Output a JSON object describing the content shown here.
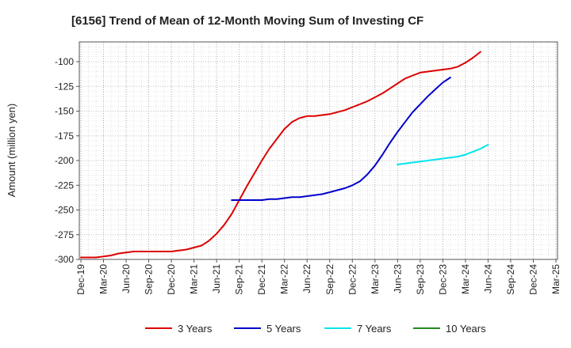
{
  "chart_data": {
    "type": "line",
    "title": "[6156]  Trend of Mean of 12-Month Moving Sum of Investing CF",
    "ylabel": "Amount (million yen)",
    "xlabel": "",
    "ylim": [
      -300,
      -80
    ],
    "yticks": [
      -100,
      -125,
      -150,
      -175,
      -200,
      -225,
      -250,
      -275,
      -300
    ],
    "xticks": [
      "Dec-19",
      "Mar-20",
      "Jun-20",
      "Sep-20",
      "Dec-20",
      "Mar-21",
      "Jun-21",
      "Sep-21",
      "Dec-21",
      "Mar-22",
      "Jun-22",
      "Sep-22",
      "Dec-22",
      "Mar-23",
      "Jun-23",
      "Sep-23",
      "Dec-23",
      "Mar-24",
      "Jun-24",
      "Sep-24",
      "Dec-24",
      "Mar-25"
    ],
    "grid": true,
    "legend_position": "bottom",
    "series": [
      {
        "name": "3 Years",
        "color": "#dd0000",
        "start_index": 0,
        "values": [
          -298,
          -298,
          -298,
          -297,
          -296,
          -294,
          -293,
          -292,
          -292,
          -292,
          -292,
          -292,
          -292,
          -291,
          -290,
          -288,
          -286,
          -281,
          -274,
          -265,
          -254,
          -240,
          -226,
          -213,
          -200,
          -188,
          -178,
          -168,
          -161,
          -157,
          -155,
          -155,
          -154,
          -153,
          -151,
          -149,
          -146,
          -143,
          -140,
          -136,
          -132,
          -127,
          -122,
          -117,
          -114,
          -111,
          -110,
          -109,
          -108,
          -107,
          -105,
          -101,
          -96,
          -90
        ]
      },
      {
        "name": "5 Years",
        "color": "#0000cc",
        "start_index": 20,
        "values": [
          -240,
          -240,
          -240,
          -240,
          -240,
          -239,
          -239,
          -238,
          -237,
          -237,
          -236,
          -235,
          -234,
          -232,
          -230,
          -228,
          -225,
          -221,
          -214,
          -205,
          -194,
          -182,
          -171,
          -161,
          -151,
          -143,
          -135,
          -128,
          -121,
          -116
        ]
      },
      {
        "name": "7 Years",
        "color": "#00e5ee",
        "start_index": 42,
        "values": [
          -204,
          -203,
          -202,
          -201,
          -200,
          -199,
          -198,
          -197,
          -196,
          -194,
          -191,
          -188,
          -184
        ]
      },
      {
        "name": "10 Years",
        "color": "#228b22",
        "start_index": 0,
        "values": []
      }
    ]
  }
}
